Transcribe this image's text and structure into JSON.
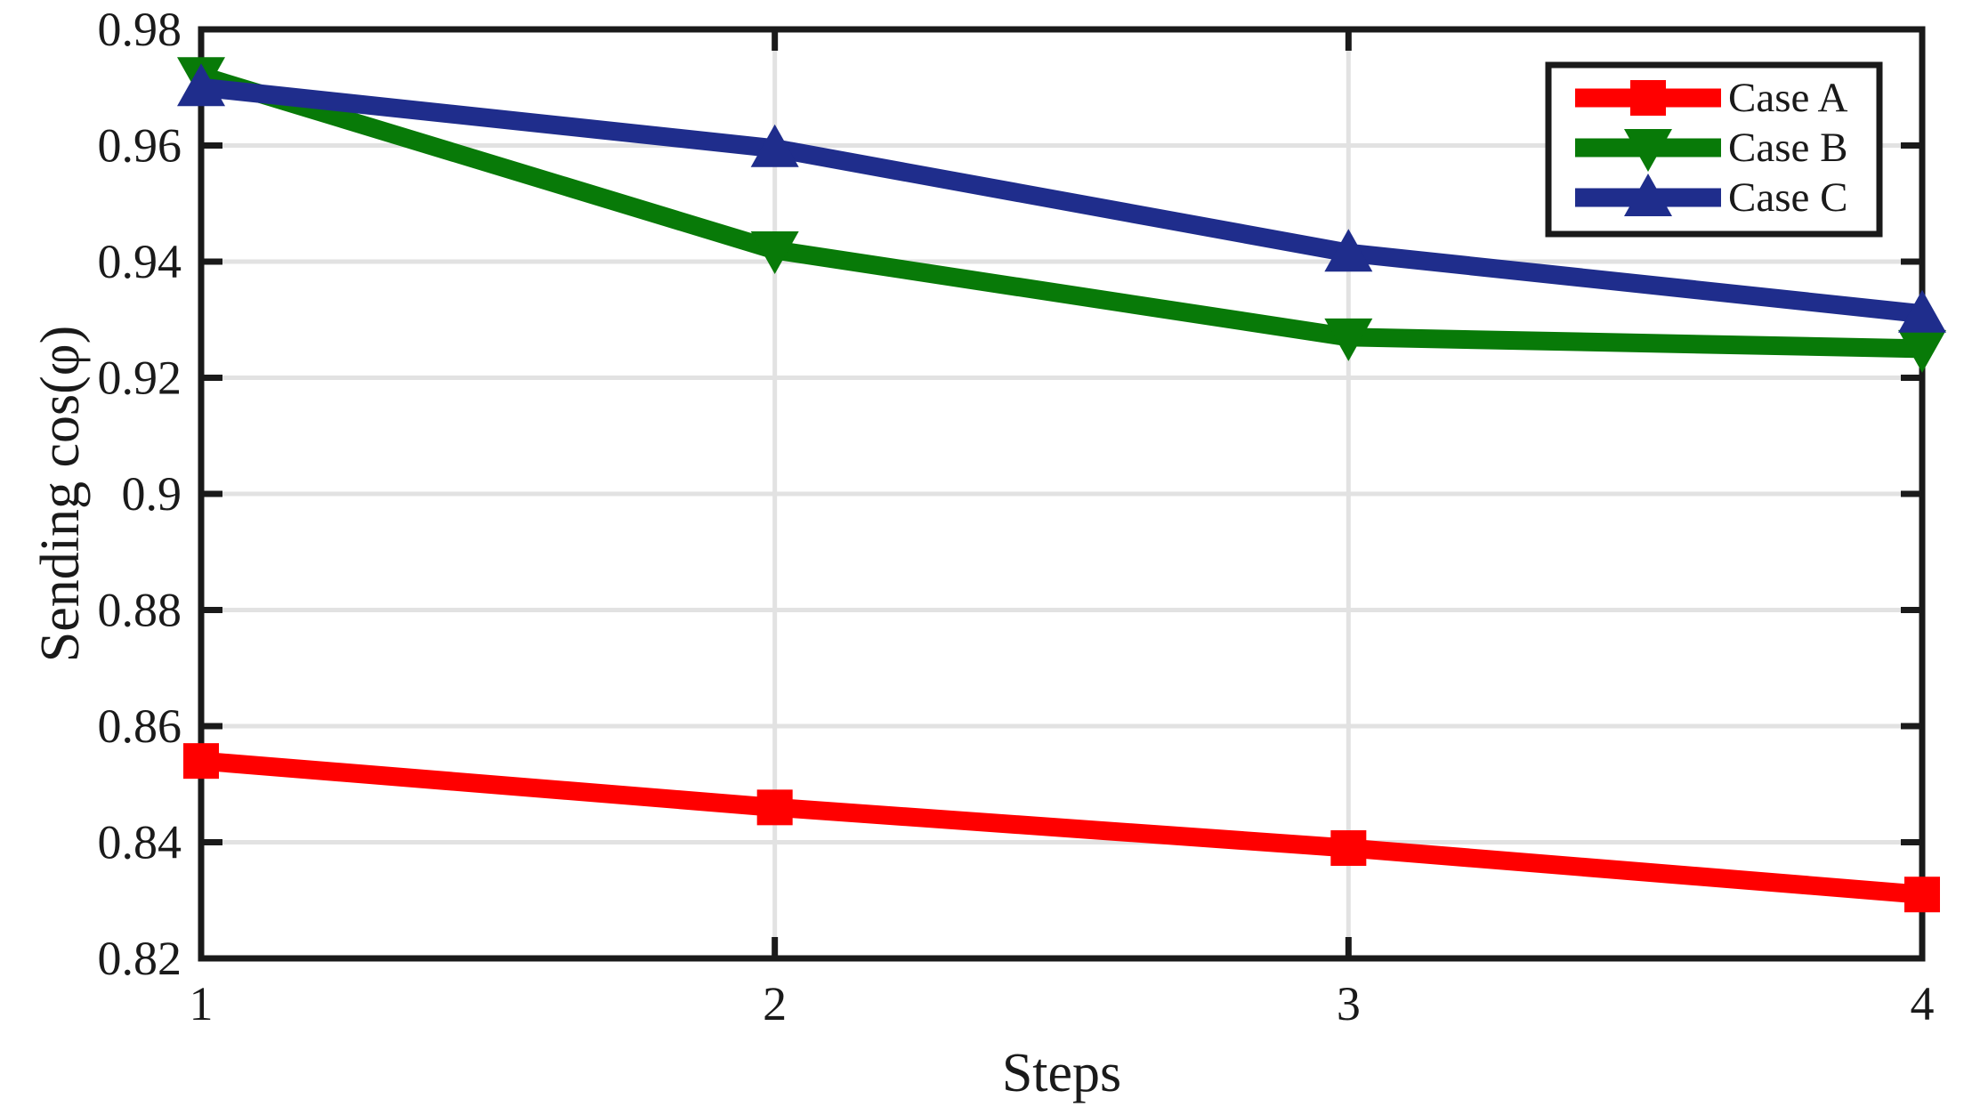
{
  "figure": {
    "background": "#FFFFFF"
  },
  "chart_data": {
    "type": "line",
    "title": "",
    "xlabel": "Steps",
    "ylabel": "Sending cos(φ)",
    "x": [
      1,
      2,
      3,
      4
    ],
    "xlim": [
      1,
      4
    ],
    "ylim": [
      0.82,
      0.98
    ],
    "xtick_values": [
      1,
      2,
      3,
      4
    ],
    "xtick_labels": [
      "1",
      "2",
      "3",
      "4"
    ],
    "ytick_values": [
      0.82,
      0.84,
      0.86,
      0.88,
      0.9,
      0.92,
      0.94,
      0.96,
      0.98
    ],
    "ytick_labels": [
      "0.82",
      "0.84",
      "0.86",
      "0.88",
      "0.9",
      "0.92",
      "0.94",
      "0.96",
      "0.98"
    ],
    "grid": true,
    "legend": {
      "position": "top-right",
      "items": [
        "Case A",
        "Case B",
        "Case C"
      ],
      "border_color": "#1A1A1A",
      "background": "#FFFFFF"
    },
    "series": [
      {
        "name": "Case A",
        "color": "#FF0000",
        "marker": "square",
        "values": [
          0.854,
          0.846,
          0.839,
          0.831
        ]
      },
      {
        "name": "Case B",
        "color": "#087A08",
        "marker": "triangle-down",
        "values": [
          0.972,
          0.942,
          0.927,
          0.925
        ]
      },
      {
        "name": "Case C",
        "color": "#1F2D8C",
        "marker": "triangle-up",
        "values": [
          0.97,
          0.9595,
          0.9415,
          0.931
        ]
      }
    ],
    "colors": {
      "axis": "#1A1A1A",
      "grid": "#E2E2E2",
      "text": "#1A1A1A"
    }
  }
}
